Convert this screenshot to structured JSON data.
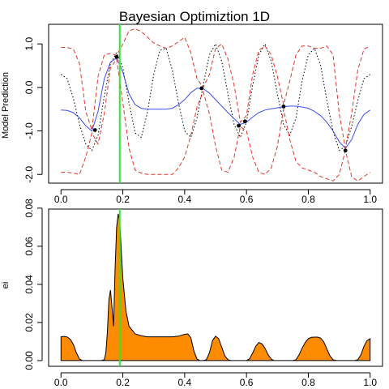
{
  "chart_data": [
    {
      "type": "line",
      "title": "Bayesian Optimiztion 1D",
      "xlabel": "",
      "ylabel": "Model Prediction",
      "xlim": [
        -0.04,
        1.04
      ],
      "ylim": [
        -2.2,
        1.45
      ],
      "xticks": [
        "0.0",
        "0.2",
        "0.4",
        "0.6",
        "0.8",
        "1.0"
      ],
      "yticks": [
        "-2.0",
        "-1.0",
        "0.0",
        "1.0"
      ],
      "vline_x": 0.19,
      "series": [
        {
          "role": "true_function",
          "style": "dotted",
          "color": "#000000",
          "x": [
            0.0,
            0.02,
            0.04,
            0.06,
            0.08,
            0.1,
            0.12,
            0.14,
            0.16,
            0.18,
            0.2,
            0.22,
            0.24,
            0.26,
            0.28,
            0.3,
            0.32,
            0.34,
            0.36,
            0.38,
            0.4,
            0.42,
            0.44,
            0.46,
            0.48,
            0.5,
            0.52,
            0.54,
            0.56,
            0.58,
            0.6,
            0.62,
            0.64,
            0.66,
            0.68,
            0.7,
            0.72,
            0.74,
            0.76,
            0.78,
            0.8,
            0.82,
            0.84,
            0.86,
            0.88,
            0.9,
            0.92,
            0.94,
            0.96,
            0.98,
            1.0
          ],
          "y": [
            0.3,
            0.2,
            -0.25,
            -0.85,
            -1.3,
            -1.45,
            -1.1,
            -0.2,
            0.55,
            0.8,
            0.45,
            -0.35,
            -1.05,
            -1.15,
            -0.55,
            0.3,
            0.85,
            0.9,
            0.4,
            -0.35,
            -1.0,
            -1.15,
            -0.7,
            0.05,
            0.75,
            1.0,
            0.6,
            -0.15,
            -0.85,
            -1.15,
            -0.8,
            0.05,
            0.75,
            1.0,
            0.6,
            -0.15,
            -0.85,
            -1.1,
            -0.7,
            0.15,
            0.75,
            0.9,
            0.5,
            -0.3,
            -1.0,
            -1.45,
            -1.35,
            -0.9,
            -0.3,
            0.2,
            0.3
          ]
        },
        {
          "role": "posterior_mean",
          "style": "solid",
          "color": "#3b4ef0",
          "x": [
            0.0,
            0.02,
            0.04,
            0.06,
            0.08,
            0.1,
            0.12,
            0.14,
            0.16,
            0.18,
            0.2,
            0.22,
            0.24,
            0.26,
            0.28,
            0.3,
            0.32,
            0.34,
            0.36,
            0.38,
            0.4,
            0.42,
            0.44,
            0.46,
            0.48,
            0.5,
            0.52,
            0.54,
            0.56,
            0.58,
            0.6,
            0.62,
            0.64,
            0.66,
            0.68,
            0.7,
            0.72,
            0.74,
            0.76,
            0.78,
            0.8,
            0.82,
            0.84,
            0.86,
            0.88,
            0.9,
            0.92,
            0.94,
            0.96,
            0.98,
            1.0
          ],
          "y": [
            -0.52,
            -0.53,
            -0.58,
            -0.7,
            -0.88,
            -1.0,
            -0.55,
            0.2,
            0.58,
            0.68,
            0.35,
            -0.15,
            -0.4,
            -0.48,
            -0.5,
            -0.5,
            -0.5,
            -0.5,
            -0.48,
            -0.4,
            -0.28,
            -0.12,
            -0.02,
            -0.03,
            -0.13,
            -0.28,
            -0.43,
            -0.58,
            -0.72,
            -0.85,
            -0.8,
            -0.68,
            -0.58,
            -0.52,
            -0.49,
            -0.47,
            -0.44,
            -0.43,
            -0.43,
            -0.45,
            -0.48,
            -0.55,
            -0.65,
            -0.8,
            -1.0,
            -1.25,
            -1.4,
            -1.2,
            -0.85,
            -0.62,
            -0.52
          ]
        },
        {
          "role": "upper_bound",
          "style": "dashed",
          "color": "#e8342a",
          "x": [
            0.0,
            0.02,
            0.04,
            0.06,
            0.08,
            0.1,
            0.12,
            0.14,
            0.16,
            0.18,
            0.2,
            0.22,
            0.24,
            0.26,
            0.28,
            0.3,
            0.32,
            0.34,
            0.36,
            0.38,
            0.4,
            0.42,
            0.44,
            0.46,
            0.48,
            0.5,
            0.52,
            0.54,
            0.56,
            0.58,
            0.6,
            0.62,
            0.64,
            0.66,
            0.68,
            0.7,
            0.72,
            0.74,
            0.76,
            0.78,
            0.8,
            0.82,
            0.84,
            0.86,
            0.88,
            0.9,
            0.92,
            0.94,
            0.96,
            0.98,
            1.0
          ],
          "y": [
            0.92,
            0.92,
            0.88,
            0.55,
            -0.55,
            -0.98,
            0.25,
            0.75,
            0.78,
            0.74,
            1.0,
            1.3,
            1.35,
            1.28,
            1.15,
            1.02,
            0.95,
            0.9,
            0.95,
            1.05,
            1.15,
            0.8,
            0.2,
            0.0,
            0.3,
            0.9,
            1.0,
            0.65,
            0.05,
            -0.8,
            -0.65,
            0.3,
            0.85,
            0.95,
            0.75,
            0.25,
            -0.4,
            0.15,
            0.75,
            0.95,
            0.95,
            0.9,
            0.9,
            0.95,
            0.75,
            -0.6,
            -1.4,
            -0.6,
            0.4,
            0.88,
            0.95
          ]
        },
        {
          "role": "lower_bound",
          "style": "dashed",
          "color": "#e8342a",
          "x": [
            0.0,
            0.02,
            0.04,
            0.06,
            0.08,
            0.1,
            0.12,
            0.14,
            0.16,
            0.18,
            0.2,
            0.22,
            0.24,
            0.26,
            0.28,
            0.3,
            0.32,
            0.34,
            0.36,
            0.38,
            0.4,
            0.42,
            0.44,
            0.46,
            0.48,
            0.5,
            0.52,
            0.54,
            0.56,
            0.58,
            0.6,
            0.62,
            0.64,
            0.66,
            0.68,
            0.7,
            0.72,
            0.74,
            0.76,
            0.78,
            0.8,
            0.82,
            0.84,
            0.86,
            0.88,
            0.9,
            0.92,
            0.94,
            0.96,
            0.98,
            1.0
          ],
          "y": [
            -1.95,
            -1.95,
            -1.97,
            -2.0,
            -1.6,
            -1.05,
            -1.3,
            -0.6,
            0.45,
            0.65,
            -0.35,
            -1.4,
            -1.9,
            -1.97,
            -2.0,
            -2.0,
            -2.0,
            -2.0,
            -2.0,
            -1.85,
            -1.6,
            -1.1,
            -0.45,
            -0.1,
            -0.6,
            -1.35,
            -1.9,
            -1.95,
            -1.6,
            -0.9,
            -1.0,
            -1.6,
            -1.95,
            -2.0,
            -1.85,
            -1.35,
            -0.5,
            -1.2,
            -1.7,
            -1.85,
            -1.9,
            -1.95,
            -2.05,
            -2.1,
            -2.15,
            -2.0,
            -1.45,
            -2.05,
            -2.15,
            -2.05,
            -1.95
          ]
        }
      ],
      "observations": {
        "x": [
          0.11,
          0.18,
          0.455,
          0.575,
          0.595,
          0.72,
          0.92
        ],
        "y": [
          -0.98,
          0.7,
          -0.02,
          -0.88,
          -0.78,
          -0.44,
          -1.45
        ]
      }
    },
    {
      "type": "area",
      "title": "",
      "xlabel": "",
      "ylabel": "ei",
      "xlim": [
        -0.04,
        1.04
      ],
      "ylim": [
        -0.003,
        0.0795
      ],
      "xticks": [
        "0.0",
        "0.2",
        "0.4",
        "0.6",
        "0.8",
        "1.0"
      ],
      "yticks": [
        "0.00",
        "0.02",
        "0.04",
        "0.06",
        "0.08"
      ],
      "vline_x": 0.19,
      "fill_color": "#ff8c00",
      "series": [
        {
          "role": "expected_improvement",
          "x": [
            0.0,
            0.01,
            0.02,
            0.03,
            0.04,
            0.05,
            0.06,
            0.07,
            0.08,
            0.09,
            0.1,
            0.11,
            0.12,
            0.13,
            0.14,
            0.145,
            0.15,
            0.155,
            0.16,
            0.165,
            0.17,
            0.175,
            0.18,
            0.185,
            0.19,
            0.195,
            0.2,
            0.21,
            0.22,
            0.24,
            0.26,
            0.28,
            0.3,
            0.32,
            0.34,
            0.36,
            0.38,
            0.4,
            0.41,
            0.42,
            0.43,
            0.44,
            0.45,
            0.46,
            0.47,
            0.48,
            0.49,
            0.5,
            0.51,
            0.52,
            0.53,
            0.54,
            0.55,
            0.56,
            0.57,
            0.58,
            0.59,
            0.6,
            0.61,
            0.62,
            0.63,
            0.64,
            0.65,
            0.66,
            0.67,
            0.68,
            0.69,
            0.7,
            0.71,
            0.72,
            0.73,
            0.74,
            0.75,
            0.76,
            0.77,
            0.78,
            0.79,
            0.8,
            0.81,
            0.82,
            0.83,
            0.84,
            0.85,
            0.86,
            0.87,
            0.88,
            0.89,
            0.9,
            0.91,
            0.92,
            0.93,
            0.94,
            0.95,
            0.96,
            0.97,
            0.98,
            0.99,
            1.0
          ],
          "y": [
            0.0125,
            0.0127,
            0.0124,
            0.0112,
            0.0085,
            0.004,
            0.0008,
            0.0,
            0.0,
            0.0,
            0.0,
            0.0,
            0.0,
            0.0,
            0.0005,
            0.004,
            0.015,
            0.032,
            0.037,
            0.028,
            0.018,
            0.048,
            0.07,
            0.077,
            0.073,
            0.058,
            0.043,
            0.026,
            0.018,
            0.014,
            0.013,
            0.0125,
            0.0125,
            0.0125,
            0.0125,
            0.0125,
            0.0128,
            0.0138,
            0.014,
            0.012,
            0.005,
            0.0008,
            0.0,
            0.0,
            0.0005,
            0.004,
            0.0105,
            0.0128,
            0.0115,
            0.007,
            0.0025,
            0.0005,
            0.0,
            0.0,
            0.0,
            0.0,
            0.0,
            0.0,
            0.001,
            0.004,
            0.0075,
            0.0095,
            0.0088,
            0.0065,
            0.003,
            0.0008,
            0.0,
            0.0,
            0.0,
            0.0,
            0.0,
            0.0,
            0.0,
            0.0005,
            0.003,
            0.0065,
            0.0095,
            0.0115,
            0.0122,
            0.0123,
            0.0123,
            0.0118,
            0.0098,
            0.0062,
            0.0025,
            0.0005,
            0.0,
            0.0,
            0.0,
            0.0,
            0.0,
            0.0,
            0.0,
            0.0005,
            0.003,
            0.0075,
            0.0105,
            0.0115
          ]
        }
      ]
    }
  ]
}
